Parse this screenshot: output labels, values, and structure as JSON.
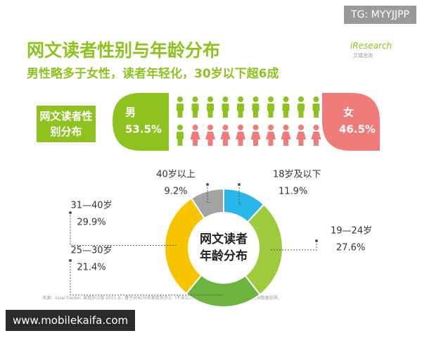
{
  "watermark": "TG: MYYJJPP",
  "brand": "iResearch",
  "brand_sub": "艾瑞咨询",
  "title": "网文读者性别与年龄分布",
  "subtitle": "男性略多于女性，读者年轻化，30岁以下超6成",
  "source": "来源：iUserTracker. 家庭办公版 2015.9，基于对40万名家庭及办公（不含公共上网地点）样本网络行为的长期监测数据获得。",
  "footer_url": "www.mobilekaifa.com",
  "chart_data": [
    {
      "type": "gender",
      "title": "网文读者性别分布",
      "categories": [
        "男",
        "女"
      ],
      "values": [
        53.5,
        46.5
      ],
      "value_labels": [
        "53.5%",
        "46.5%"
      ],
      "colors": [
        "#8dc21f",
        "#f07b7b"
      ]
    },
    {
      "type": "donut",
      "title": "网文读者年龄分布",
      "categories": [
        "18岁及以下",
        "19—24岁",
        "25—30岁",
        "31—40岁",
        "40岁以上"
      ],
      "values": [
        11.9,
        27.6,
        21.4,
        29.9,
        9.2
      ],
      "value_labels": [
        "11.9%",
        "27.6%",
        "21.4%",
        "29.9%",
        "9.2%"
      ],
      "colors": [
        "#29b6e8",
        "#9dcb3b",
        "#6cb33f",
        "#f6c500",
        "#a3a3a3"
      ]
    }
  ]
}
